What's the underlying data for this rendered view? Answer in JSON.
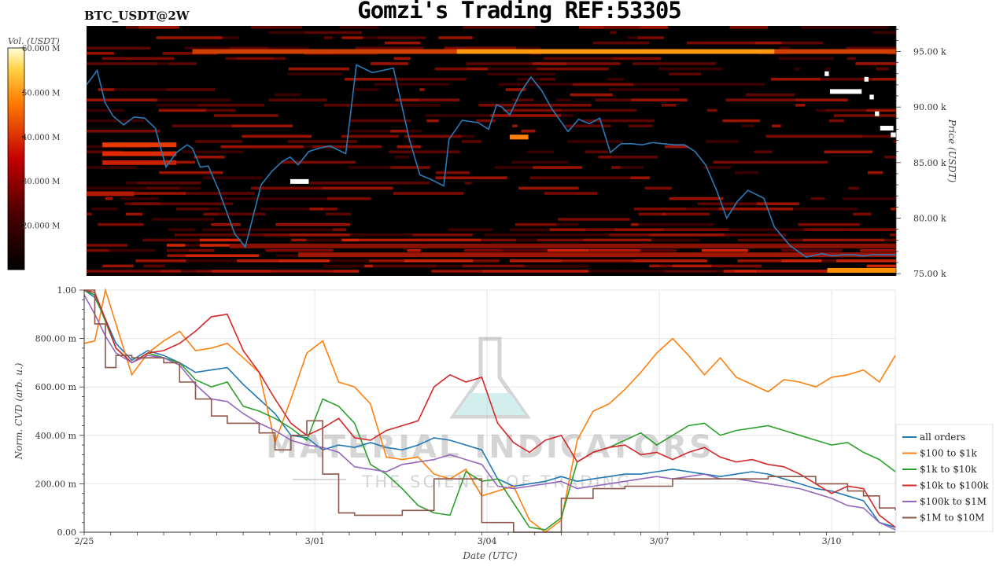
{
  "header": {
    "title": "Gomzi's Trading REF:53305",
    "symbol": "BTC_USDT@2W"
  },
  "watermark": {
    "line1": "MATERIAL INDICATORS",
    "line2": "THE SCIENCE OF TRADING"
  },
  "chart_data": [
    {
      "type": "heatmap",
      "title": "BTC_USDT@2W",
      "ylabel": "Price (USDT)",
      "ylim": [
        74800,
        97300
      ],
      "yticks": [
        {
          "value": 75000,
          "label": "75.00 k"
        },
        {
          "value": 80000,
          "label": "80.00 k"
        },
        {
          "value": 85000,
          "label": "85.00 k"
        },
        {
          "value": 90000,
          "label": "90.00 k"
        },
        {
          "value": 95000,
          "label": "95.00 k"
        }
      ],
      "colorbar": {
        "label": "Vol. (USDT)",
        "range": [
          10000000,
          60000000
        ],
        "ticks": [
          {
            "value": 20000000,
            "label": "20.000 M"
          },
          {
            "value": 30000000,
            "label": "30.000 M"
          },
          {
            "value": 40000000,
            "label": "40.000 M"
          },
          {
            "value": 50000000,
            "label": "50.000 M"
          },
          {
            "value": 60000000,
            "label": "60.000 M"
          }
        ]
      },
      "xlim": [
        0,
        15.3
      ],
      "series": [
        {
          "color": "#2a7ab8",
          "x": [
            0,
            0.2,
            0.35,
            0.5,
            0.7,
            0.9,
            1.1,
            1.3,
            1.5,
            1.7,
            1.9,
            2.0,
            2.15,
            2.3,
            2.5,
            2.8,
            3.0,
            3.3,
            3.5,
            3.7,
            3.85,
            4.0,
            4.2,
            4.4,
            4.6,
            4.9,
            5.1,
            5.4,
            5.8,
            6.1,
            6.3,
            6.5,
            6.75,
            6.85,
            7.1,
            7.4,
            7.6,
            7.75,
            7.85,
            8.0,
            8.2,
            8.4,
            8.6,
            8.8,
            9.1,
            9.3,
            9.5,
            9.7,
            9.9,
            10.1,
            10.3,
            10.5,
            10.7,
            10.9,
            11.1,
            11.3,
            11.5,
            11.7,
            11.9,
            12.1,
            12.3,
            12.5,
            12.8,
            13.0,
            13.3,
            13.6,
            13.9,
            14.1,
            14.3,
            14.5,
            14.7,
            14.85,
            15.0,
            15.15,
            15.3
          ],
          "values": [
            92000,
            93300,
            90400,
            89200,
            88400,
            89100,
            89000,
            88100,
            84600,
            85900,
            86600,
            86300,
            84600,
            84700,
            82500,
            78600,
            77400,
            83000,
            84200,
            85100,
            85500,
            84800,
            86000,
            86300,
            86500,
            85800,
            93800,
            93100,
            93500,
            87100,
            83900,
            83500,
            82900,
            87100,
            88800,
            88600,
            88000,
            90200,
            90000,
            89300,
            91300,
            92700,
            91500,
            89800,
            87800,
            88900,
            88500,
            89000,
            85900,
            86700,
            86700,
            86600,
            86800,
            86700,
            86600,
            86600,
            86000,
            84800,
            82600,
            80000,
            81500,
            82500,
            81800,
            79200,
            77500,
            76500,
            76800,
            76600,
            76700,
            76700,
            76600,
            76700,
            76700,
            76700,
            76700
          ]
        }
      ]
    },
    {
      "type": "line",
      "xlabel": "Date (UTC)",
      "ylabel": "Norm. CVD (arb. u.)",
      "ylim": [
        0,
        1
      ],
      "xlim": [
        0,
        15.3
      ],
      "grid": true,
      "legend": "right",
      "xticks": [
        {
          "value": 0,
          "label": "2/25"
        },
        {
          "value": 4.35,
          "label": "3/01"
        },
        {
          "value": 7.6,
          "label": "3/04"
        },
        {
          "value": 10.85,
          "label": "3/07"
        },
        {
          "value": 14.1,
          "label": "3/10"
        }
      ],
      "yticks": [
        {
          "value": 0,
          "label": "0.00"
        },
        {
          "value": 0.2,
          "label": "200.00 m"
        },
        {
          "value": 0.4,
          "label": "400.00 m"
        },
        {
          "value": 0.6,
          "label": "600.00 m"
        },
        {
          "value": 0.8,
          "label": "800.00 m"
        },
        {
          "value": 1,
          "label": "1.00"
        }
      ],
      "series": [
        {
          "name": "all orders",
          "color": "#1f77b4",
          "step": false,
          "x": [
            0,
            0.2,
            0.4,
            0.6,
            0.9,
            1.2,
            1.5,
            1.8,
            2.1,
            2.4,
            2.7,
            3.0,
            3.3,
            3.6,
            3.9,
            4.2,
            4.5,
            4.8,
            5.1,
            5.4,
            5.7,
            6.0,
            6.3,
            6.6,
            6.9,
            7.2,
            7.5,
            7.8,
            8.1,
            8.4,
            8.7,
            9.0,
            9.3,
            9.6,
            9.9,
            10.2,
            10.5,
            10.8,
            11.1,
            11.4,
            11.7,
            12.0,
            12.3,
            12.6,
            12.9,
            13.2,
            13.5,
            13.8,
            14.1,
            14.4,
            14.7,
            15.0,
            15.3
          ],
          "values": [
            1.0,
            0.97,
            0.88,
            0.78,
            0.71,
            0.75,
            0.73,
            0.7,
            0.66,
            0.67,
            0.68,
            0.61,
            0.55,
            0.49,
            0.4,
            0.39,
            0.34,
            0.36,
            0.35,
            0.37,
            0.35,
            0.34,
            0.36,
            0.39,
            0.38,
            0.36,
            0.34,
            0.22,
            0.19,
            0.2,
            0.21,
            0.23,
            0.21,
            0.22,
            0.23,
            0.24,
            0.24,
            0.25,
            0.26,
            0.25,
            0.24,
            0.23,
            0.24,
            0.25,
            0.24,
            0.22,
            0.2,
            0.18,
            0.17,
            0.15,
            0.13,
            0.04,
            0.02
          ]
        },
        {
          "name": "$100 to $1k",
          "color": "#ff7f0e",
          "step": false,
          "x": [
            0,
            0.2,
            0.4,
            0.6,
            0.9,
            1.2,
            1.5,
            1.8,
            2.1,
            2.4,
            2.7,
            3.0,
            3.3,
            3.6,
            3.9,
            4.2,
            4.5,
            4.8,
            5.1,
            5.4,
            5.7,
            6.0,
            6.3,
            6.6,
            6.9,
            7.2,
            7.5,
            7.8,
            8.1,
            8.4,
            8.7,
            9.0,
            9.3,
            9.6,
            9.9,
            10.2,
            10.5,
            10.8,
            11.1,
            11.4,
            11.7,
            12.0,
            12.3,
            12.6,
            12.9,
            13.2,
            13.5,
            13.8,
            14.1,
            14.4,
            14.7,
            15.0,
            15.3
          ],
          "values": [
            0.78,
            0.79,
            1.0,
            0.86,
            0.65,
            0.74,
            0.79,
            0.83,
            0.75,
            0.76,
            0.78,
            0.72,
            0.66,
            0.37,
            0.55,
            0.74,
            0.79,
            0.62,
            0.6,
            0.53,
            0.31,
            0.3,
            0.31,
            0.24,
            0.22,
            0.26,
            0.15,
            0.17,
            0.19,
            0.05,
            0.0,
            0.05,
            0.38,
            0.5,
            0.53,
            0.59,
            0.66,
            0.74,
            0.8,
            0.73,
            0.65,
            0.72,
            0.64,
            0.61,
            0.58,
            0.63,
            0.62,
            0.6,
            0.64,
            0.65,
            0.67,
            0.62,
            0.73
          ]
        },
        {
          "name": "$1k to $10k",
          "color": "#2ca02c",
          "step": false,
          "x": [
            0,
            0.2,
            0.4,
            0.6,
            0.9,
            1.2,
            1.5,
            1.8,
            2.1,
            2.4,
            2.7,
            3.0,
            3.3,
            3.6,
            3.9,
            4.2,
            4.5,
            4.8,
            5.1,
            5.4,
            5.7,
            6.0,
            6.3,
            6.6,
            6.9,
            7.2,
            7.5,
            7.8,
            8.1,
            8.4,
            8.7,
            9.0,
            9.3,
            9.6,
            9.9,
            10.2,
            10.5,
            10.8,
            11.1,
            11.4,
            11.7,
            12.0,
            12.3,
            12.6,
            12.9,
            13.2,
            13.5,
            13.8,
            14.1,
            14.4,
            14.7,
            15.0,
            15.3
          ],
          "values": [
            1.0,
            0.98,
            0.87,
            0.76,
            0.7,
            0.74,
            0.72,
            0.7,
            0.63,
            0.6,
            0.62,
            0.52,
            0.5,
            0.47,
            0.43,
            0.38,
            0.55,
            0.52,
            0.45,
            0.28,
            0.24,
            0.18,
            0.11,
            0.08,
            0.07,
            0.25,
            0.21,
            0.22,
            0.12,
            0.02,
            0.01,
            0.06,
            0.29,
            0.33,
            0.35,
            0.38,
            0.41,
            0.36,
            0.4,
            0.44,
            0.45,
            0.4,
            0.42,
            0.43,
            0.44,
            0.42,
            0.4,
            0.38,
            0.36,
            0.37,
            0.33,
            0.3,
            0.25
          ]
        },
        {
          "name": "$10k to $100k",
          "color": "#d62728",
          "step": false,
          "x": [
            0,
            0.2,
            0.4,
            0.6,
            0.9,
            1.2,
            1.5,
            1.8,
            2.1,
            2.4,
            2.7,
            3.0,
            3.3,
            3.6,
            3.9,
            4.2,
            4.5,
            4.8,
            5.1,
            5.4,
            5.7,
            6.0,
            6.3,
            6.6,
            6.9,
            7.2,
            7.5,
            7.8,
            8.1,
            8.4,
            8.7,
            9.0,
            9.3,
            9.6,
            9.9,
            10.2,
            10.5,
            10.8,
            11.1,
            11.4,
            11.7,
            12.0,
            12.3,
            12.6,
            12.9,
            13.2,
            13.5,
            13.8,
            14.1,
            14.4,
            14.7,
            15.0,
            15.3
          ],
          "values": [
            1.0,
            0.99,
            0.88,
            0.76,
            0.7,
            0.74,
            0.75,
            0.78,
            0.83,
            0.89,
            0.9,
            0.75,
            0.66,
            0.55,
            0.45,
            0.4,
            0.43,
            0.47,
            0.39,
            0.38,
            0.42,
            0.44,
            0.46,
            0.6,
            0.65,
            0.62,
            0.64,
            0.45,
            0.37,
            0.33,
            0.38,
            0.4,
            0.29,
            0.33,
            0.35,
            0.36,
            0.32,
            0.33,
            0.3,
            0.33,
            0.35,
            0.31,
            0.29,
            0.3,
            0.28,
            0.27,
            0.24,
            0.2,
            0.16,
            0.19,
            0.18,
            0.07,
            0.02
          ]
        },
        {
          "name": "$100k to $1M",
          "color": "#9467bd",
          "step": false,
          "x": [
            0,
            0.2,
            0.4,
            0.6,
            0.9,
            1.2,
            1.5,
            1.8,
            2.1,
            2.4,
            2.7,
            3.0,
            3.3,
            3.6,
            3.9,
            4.2,
            4.5,
            4.8,
            5.1,
            5.4,
            5.7,
            6.0,
            6.3,
            6.6,
            6.9,
            7.2,
            7.5,
            7.8,
            8.1,
            8.4,
            8.7,
            9.0,
            9.3,
            9.6,
            9.9,
            10.2,
            10.5,
            10.8,
            11.1,
            11.4,
            11.7,
            12.0,
            12.3,
            12.6,
            12.9,
            13.2,
            13.5,
            13.8,
            14.1,
            14.4,
            14.7,
            15.0,
            15.3
          ],
          "values": [
            0.98,
            0.9,
            0.81,
            0.74,
            0.7,
            0.73,
            0.72,
            0.69,
            0.61,
            0.55,
            0.54,
            0.49,
            0.45,
            0.42,
            0.38,
            0.36,
            0.35,
            0.33,
            0.27,
            0.26,
            0.25,
            0.28,
            0.29,
            0.3,
            0.32,
            0.3,
            0.28,
            0.19,
            0.18,
            0.19,
            0.2,
            0.21,
            0.18,
            0.19,
            0.2,
            0.21,
            0.22,
            0.23,
            0.22,
            0.23,
            0.24,
            0.22,
            0.22,
            0.21,
            0.2,
            0.19,
            0.18,
            0.16,
            0.14,
            0.11,
            0.1,
            0.04,
            0.01
          ]
        },
        {
          "name": "$1M to $10M",
          "color": "#8c564b",
          "step": true,
          "x": [
            0,
            0.2,
            0.4,
            0.6,
            0.9,
            1.2,
            1.5,
            1.8,
            2.1,
            2.4,
            2.7,
            3.0,
            3.3,
            3.6,
            3.9,
            4.2,
            4.5,
            4.8,
            5.1,
            5.4,
            5.7,
            6.0,
            6.3,
            6.6,
            6.9,
            7.2,
            7.5,
            7.8,
            8.1,
            8.4,
            8.7,
            9.0,
            9.3,
            9.6,
            9.9,
            10.2,
            10.5,
            10.8,
            11.1,
            11.4,
            11.7,
            12.0,
            12.3,
            12.6,
            12.9,
            13.2,
            13.5,
            13.8,
            14.1,
            14.4,
            14.7,
            15.0,
            15.3
          ],
          "values": [
            1.0,
            0.86,
            0.68,
            0.73,
            0.72,
            0.72,
            0.7,
            0.62,
            0.55,
            0.48,
            0.45,
            0.45,
            0.41,
            0.34,
            0.4,
            0.46,
            0.24,
            0.08,
            0.07,
            0.07,
            0.07,
            0.09,
            0.09,
            0.22,
            0.22,
            0.22,
            0.04,
            0.04,
            0.0,
            0.0,
            0.0,
            0.14,
            0.14,
            0.18,
            0.18,
            0.19,
            0.19,
            0.19,
            0.22,
            0.22,
            0.22,
            0.22,
            0.22,
            0.22,
            0.23,
            0.23,
            0.23,
            0.2,
            0.2,
            0.17,
            0.15,
            0.1,
            0.09
          ]
        }
      ]
    }
  ]
}
